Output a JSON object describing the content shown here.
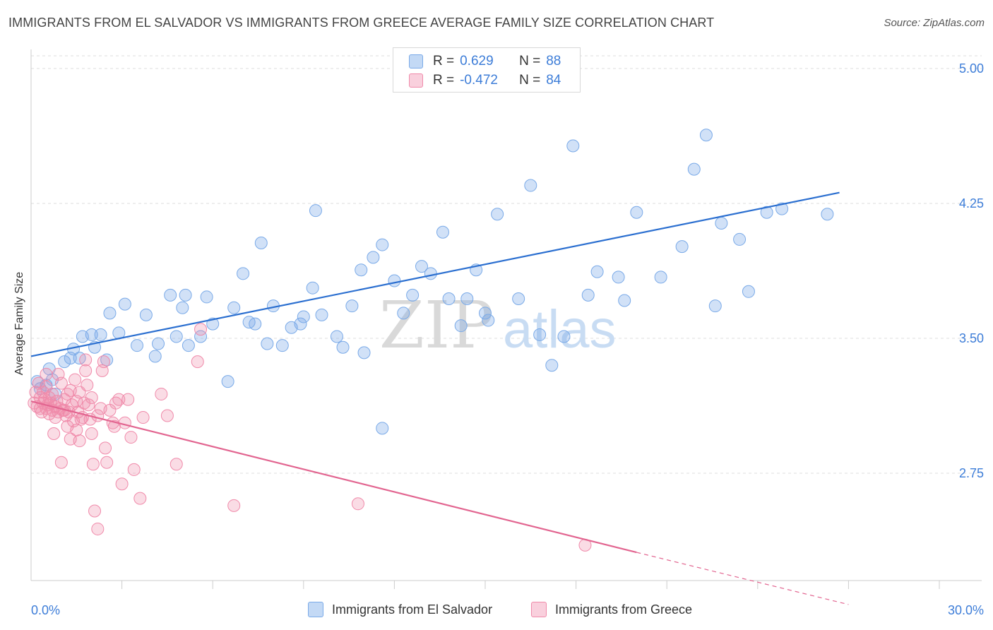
{
  "title": "IMMIGRANTS FROM EL SALVADOR VS IMMIGRANTS FROM GREECE AVERAGE FAMILY SIZE CORRELATION CHART",
  "source": "Source: ZipAtlas.com",
  "watermark": {
    "zip": "ZIP",
    "atlas": "atlas"
  },
  "colors": {
    "blue": "#7aaae8",
    "blue_fill": "rgba(122,170,232,0.35)",
    "blue_line": "#2b6fd0",
    "pink": "#f08aaa",
    "pink_fill": "rgba(240,138,170,0.30)",
    "pink_line": "#e26590",
    "axis_text": "#3d7dd8",
    "grid": "#dddddd"
  },
  "legend": {
    "r_label": "R =",
    "n_label": "N =",
    "rows": [
      {
        "r": "0.629",
        "n": "88",
        "color": "blue"
      },
      {
        "r": "-0.472",
        "n": "84",
        "color": "pink"
      }
    ]
  },
  "bottom_legend": [
    {
      "label": "Immigrants from El Salvador",
      "color": "blue"
    },
    {
      "label": "Immigrants from Greece",
      "color": "pink"
    }
  ],
  "chart_data": {
    "type": "scatter",
    "title": "IMMIGRANTS FROM EL SALVADOR VS IMMIGRANTS FROM GREECE AVERAGE FAMILY SIZE CORRELATION CHART",
    "xlabel": "",
    "ylabel": "Average Family Size",
    "xlim": [
      0,
      30
    ],
    "ylim": [
      2.2,
      5.1
    ],
    "x_tick_labels": [
      "0.0%",
      "30.0%"
    ],
    "y_ticks": [
      2.75,
      3.5,
      4.25,
      5.0
    ],
    "y_tick_labels": [
      "2.75",
      "3.50",
      "4.25",
      "5.00"
    ],
    "grid": true,
    "legend_position": "top-center",
    "series": [
      {
        "name": "Immigrants from El Salvador",
        "color": "blue",
        "r": 0.629,
        "n": 88,
        "trend": {
          "x": [
            0,
            26.7
          ],
          "y": [
            3.4,
            4.31
          ]
        },
        "points": [
          [
            0.2,
            3.26
          ],
          [
            0.3,
            3.22
          ],
          [
            0.5,
            3.24
          ],
          [
            0.6,
            3.33
          ],
          [
            0.7,
            3.27
          ],
          [
            0.8,
            3.19
          ],
          [
            1.1,
            3.37
          ],
          [
            1.3,
            3.39
          ],
          [
            1.4,
            3.44
          ],
          [
            1.6,
            3.39
          ],
          [
            1.7,
            3.51
          ],
          [
            2.0,
            3.52
          ],
          [
            2.1,
            3.45
          ],
          [
            2.3,
            3.52
          ],
          [
            2.5,
            3.38
          ],
          [
            2.6,
            3.64
          ],
          [
            2.9,
            3.53
          ],
          [
            3.1,
            3.69
          ],
          [
            3.5,
            3.46
          ],
          [
            3.8,
            3.63
          ],
          [
            4.1,
            3.4
          ],
          [
            4.2,
            3.47
          ],
          [
            4.6,
            3.74
          ],
          [
            4.8,
            3.51
          ],
          [
            5.0,
            3.67
          ],
          [
            5.1,
            3.74
          ],
          [
            5.2,
            3.46
          ],
          [
            5.6,
            3.51
          ],
          [
            5.8,
            3.73
          ],
          [
            6.0,
            3.58
          ],
          [
            6.5,
            3.26
          ],
          [
            6.7,
            3.67
          ],
          [
            7.0,
            3.86
          ],
          [
            7.2,
            3.59
          ],
          [
            7.4,
            3.58
          ],
          [
            7.6,
            4.03
          ],
          [
            7.8,
            3.47
          ],
          [
            8.0,
            3.68
          ],
          [
            8.3,
            3.46
          ],
          [
            8.6,
            3.56
          ],
          [
            8.9,
            3.58
          ],
          [
            9.0,
            3.62
          ],
          [
            9.3,
            3.78
          ],
          [
            9.4,
            4.21
          ],
          [
            9.6,
            3.63
          ],
          [
            10.1,
            3.51
          ],
          [
            10.3,
            3.45
          ],
          [
            10.6,
            3.68
          ],
          [
            10.9,
            3.88
          ],
          [
            11.0,
            3.42
          ],
          [
            11.3,
            3.95
          ],
          [
            11.6,
            4.02
          ],
          [
            12.0,
            3.82
          ],
          [
            12.3,
            3.64
          ],
          [
            12.6,
            3.74
          ],
          [
            12.9,
            3.9
          ],
          [
            13.2,
            3.86
          ],
          [
            13.6,
            4.09
          ],
          [
            13.8,
            3.72
          ],
          [
            14.2,
            3.57
          ],
          [
            14.4,
            3.72
          ],
          [
            14.7,
            3.88
          ],
          [
            15.0,
            3.64
          ],
          [
            15.1,
            3.6
          ],
          [
            11.6,
            3.0
          ],
          [
            15.4,
            4.19
          ],
          [
            16.1,
            3.72
          ],
          [
            16.5,
            4.35
          ],
          [
            16.8,
            3.52
          ],
          [
            17.2,
            3.35
          ],
          [
            17.6,
            3.51
          ],
          [
            17.9,
            4.57
          ],
          [
            18.4,
            3.74
          ],
          [
            18.7,
            3.87
          ],
          [
            19.4,
            3.84
          ],
          [
            19.6,
            3.71
          ],
          [
            20.0,
            4.2
          ],
          [
            20.8,
            3.84
          ],
          [
            21.5,
            4.01
          ],
          [
            21.9,
            4.44
          ],
          [
            22.3,
            4.63
          ],
          [
            22.6,
            3.68
          ],
          [
            22.8,
            4.14
          ],
          [
            23.4,
            4.05
          ],
          [
            23.7,
            3.76
          ],
          [
            24.3,
            4.2
          ],
          [
            24.8,
            4.22
          ],
          [
            26.3,
            4.19
          ]
        ]
      },
      {
        "name": "Immigrants from Greece",
        "color": "pink",
        "r": -0.472,
        "n": 84,
        "trend": {
          "x": [
            0,
            20.0
          ],
          "y": [
            3.15,
            2.31
          ],
          "dash_to": [
            27.0,
            2.02
          ]
        },
        "points": [
          [
            0.1,
            3.14
          ],
          [
            0.15,
            3.2
          ],
          [
            0.2,
            3.12
          ],
          [
            0.25,
            3.25
          ],
          [
            0.3,
            3.11
          ],
          [
            0.3,
            3.17
          ],
          [
            0.35,
            3.09
          ],
          [
            0.4,
            3.14
          ],
          [
            0.4,
            3.2
          ],
          [
            0.45,
            3.16
          ],
          [
            0.5,
            3.23
          ],
          [
            0.5,
            3.11
          ],
          [
            0.55,
            3.13
          ],
          [
            0.6,
            3.17
          ],
          [
            0.6,
            3.08
          ],
          [
            0.65,
            3.14
          ],
          [
            0.7,
            3.1
          ],
          [
            0.7,
            3.19
          ],
          [
            0.75,
            2.97
          ],
          [
            0.8,
            3.12
          ],
          [
            0.8,
            3.06
          ],
          [
            0.85,
            3.15
          ],
          [
            0.9,
            3.3
          ],
          [
            0.9,
            3.09
          ],
          [
            0.95,
            3.11
          ],
          [
            1.0,
            2.81
          ],
          [
            1.0,
            3.25
          ],
          [
            1.05,
            3.1
          ],
          [
            1.1,
            3.16
          ],
          [
            1.15,
            3.07
          ],
          [
            1.2,
            3.19
          ],
          [
            1.2,
            3.01
          ],
          [
            1.25,
            3.09
          ],
          [
            1.3,
            3.21
          ],
          [
            1.3,
            2.94
          ],
          [
            1.35,
            3.13
          ],
          [
            1.4,
            3.04
          ],
          [
            1.45,
            3.27
          ],
          [
            1.5,
            2.99
          ],
          [
            1.5,
            3.15
          ],
          [
            1.55,
            3.09
          ],
          [
            1.6,
            3.2
          ],
          [
            1.6,
            2.93
          ],
          [
            1.65,
            3.05
          ],
          [
            1.7,
            3.06
          ],
          [
            1.75,
            3.14
          ],
          [
            1.8,
            3.32
          ],
          [
            1.8,
            3.38
          ],
          [
            1.85,
            3.24
          ],
          [
            1.9,
            3.13
          ],
          [
            1.95,
            3.05
          ],
          [
            2.0,
            3.17
          ],
          [
            2.0,
            2.97
          ],
          [
            2.05,
            2.8
          ],
          [
            2.1,
            2.54
          ],
          [
            2.2,
            3.07
          ],
          [
            2.3,
            3.11
          ],
          [
            2.35,
            3.32
          ],
          [
            2.4,
            3.37
          ],
          [
            2.45,
            2.89
          ],
          [
            2.5,
            2.81
          ],
          [
            2.6,
            3.1
          ],
          [
            2.7,
            3.03
          ],
          [
            2.75,
            3.01
          ],
          [
            2.8,
            3.14
          ],
          [
            2.9,
            3.16
          ],
          [
            3.0,
            2.69
          ],
          [
            3.1,
            3.03
          ],
          [
            3.3,
            2.95
          ],
          [
            3.4,
            2.77
          ],
          [
            3.6,
            2.61
          ],
          [
            3.7,
            3.06
          ],
          [
            4.3,
            3.19
          ],
          [
            4.5,
            3.07
          ],
          [
            4.8,
            2.8
          ],
          [
            5.5,
            3.37
          ],
          [
            5.6,
            3.55
          ],
          [
            6.7,
            2.57
          ],
          [
            10.8,
            2.58
          ],
          [
            18.3,
            2.35
          ],
          [
            2.2,
            2.44
          ],
          [
            1.1,
            3.1
          ],
          [
            0.5,
            3.3
          ],
          [
            3.2,
            3.16
          ]
        ]
      }
    ]
  }
}
